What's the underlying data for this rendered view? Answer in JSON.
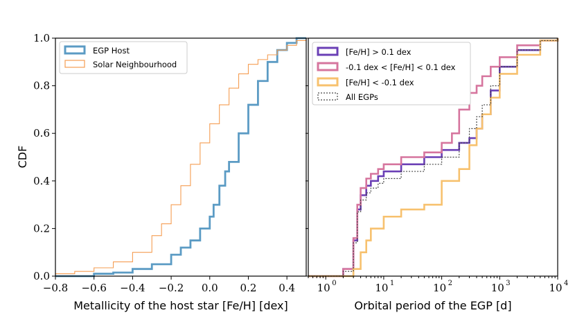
{
  "chart_data": [
    {
      "type": "step-cdf",
      "panel": "left",
      "xlabel": "Metallicity of the host star [Fe/H] [dex]",
      "ylabel": "CDF",
      "xlim": [
        -0.8,
        0.5
      ],
      "ylim": [
        0,
        1.0
      ],
      "xticks": [
        -0.8,
        -0.6,
        -0.4,
        -0.2,
        0.0,
        0.2,
        0.4
      ],
      "xtick_labels": [
        "−0.8",
        "−0.6",
        "−0.4",
        "−0.2",
        "0.0",
        "0.2",
        "0.4"
      ],
      "yticks": [
        0,
        0.2,
        0.4,
        0.6,
        0.8,
        1.0
      ],
      "ytick_labels": [
        "0.0",
        "0.2",
        "0.4",
        "0.6",
        "0.8",
        "1.0"
      ],
      "legend_position": "top-left",
      "series": [
        {
          "name": "EGP Host",
          "color": "#5b9bc4",
          "width": "thick",
          "x": [
            -0.8,
            -0.6,
            -0.5,
            -0.4,
            -0.3,
            -0.2,
            -0.15,
            -0.1,
            -0.05,
            0.0,
            0.02,
            0.05,
            0.08,
            0.1,
            0.15,
            0.2,
            0.25,
            0.3,
            0.35,
            0.4,
            0.45,
            0.5
          ],
          "y": [
            0.0,
            0.01,
            0.015,
            0.03,
            0.05,
            0.09,
            0.12,
            0.15,
            0.2,
            0.25,
            0.3,
            0.38,
            0.44,
            0.48,
            0.6,
            0.72,
            0.82,
            0.9,
            0.95,
            0.98,
            1.0,
            1.0
          ]
        },
        {
          "name": "Solar Neighbourhood",
          "color": "#f59d52",
          "width": "thin",
          "x": [
            -0.8,
            -0.7,
            -0.6,
            -0.5,
            -0.4,
            -0.3,
            -0.25,
            -0.2,
            -0.15,
            -0.1,
            -0.05,
            0.0,
            0.05,
            0.1,
            0.15,
            0.2,
            0.25,
            0.3,
            0.35,
            0.4,
            0.45,
            0.5
          ],
          "y": [
            0.01,
            0.02,
            0.035,
            0.06,
            0.1,
            0.17,
            0.22,
            0.3,
            0.38,
            0.47,
            0.56,
            0.64,
            0.72,
            0.79,
            0.85,
            0.89,
            0.91,
            0.93,
            0.95,
            0.97,
            0.99,
            1.0
          ]
        }
      ]
    },
    {
      "type": "step-cdf",
      "panel": "right",
      "xlabel": "Orbital period of the EGP [d]",
      "ylabel": "",
      "xscale": "log",
      "xlim": [
        0.5,
        10000
      ],
      "ylim": [
        0,
        1.0
      ],
      "xticks": [
        1,
        10,
        100,
        1000,
        10000
      ],
      "xtick_labels": [
        "10",
        "10",
        "10",
        "10",
        "10"
      ],
      "xtick_exponents": [
        "0",
        "1",
        "2",
        "3",
        "4"
      ],
      "legend_position": "top-left",
      "series": [
        {
          "name": "[Fe/H] > 0.1 dex",
          "color": "#6a3fb5",
          "style": "solid",
          "x": [
            0.5,
            1,
            2,
            3,
            3.5,
            4,
            5,
            6,
            8,
            10,
            20,
            50,
            100,
            200,
            300,
            400,
            500,
            700,
            1000,
            2000,
            5000,
            10000
          ],
          "y": [
            0.0,
            0.0,
            0.03,
            0.15,
            0.28,
            0.34,
            0.38,
            0.4,
            0.42,
            0.44,
            0.47,
            0.5,
            0.53,
            0.56,
            0.58,
            0.62,
            0.68,
            0.78,
            0.88,
            0.95,
            0.99,
            1.0
          ]
        },
        {
          "name": "-0.1 dex < [Fe/H] < 0.1 dex",
          "color": "#d6759e",
          "style": "solid",
          "x": [
            0.5,
            1,
            2,
            3,
            3.5,
            4,
            5,
            6,
            8,
            10,
            20,
            50,
            100,
            150,
            200,
            300,
            400,
            500,
            700,
            1000,
            2000,
            5000,
            10000
          ],
          "y": [
            0.0,
            0.0,
            0.03,
            0.16,
            0.3,
            0.37,
            0.41,
            0.43,
            0.45,
            0.47,
            0.5,
            0.52,
            0.56,
            0.6,
            0.7,
            0.77,
            0.8,
            0.84,
            0.88,
            0.92,
            0.97,
            0.99,
            1.0
          ]
        },
        {
          "name": "[Fe/H] < -0.1 dex",
          "color": "#f7c16e",
          "style": "solid",
          "x": [
            0.5,
            1,
            2,
            3,
            4,
            5,
            6,
            10,
            20,
            50,
            80,
            100,
            200,
            300,
            400,
            500,
            700,
            1000,
            2000,
            5000,
            10000
          ],
          "y": [
            0.0,
            0.0,
            0.0,
            0.03,
            0.1,
            0.15,
            0.2,
            0.25,
            0.28,
            0.3,
            0.3,
            0.4,
            0.45,
            0.55,
            0.62,
            0.68,
            0.75,
            0.85,
            0.93,
            0.99,
            1.0
          ]
        },
        {
          "name": "All EGPs",
          "color": "#444444",
          "style": "dotted",
          "x": [
            0.5,
            1,
            2,
            3,
            3.5,
            4,
            5,
            6,
            8,
            10,
            20,
            50,
            100,
            200,
            300,
            400,
            500,
            700,
            1000,
            2000,
            5000,
            10000
          ],
          "y": [
            0.0,
            0.0,
            0.02,
            0.14,
            0.27,
            0.32,
            0.35,
            0.37,
            0.39,
            0.41,
            0.44,
            0.47,
            0.5,
            0.56,
            0.62,
            0.67,
            0.72,
            0.8,
            0.88,
            0.95,
            0.99,
            1.0
          ]
        }
      ]
    }
  ]
}
